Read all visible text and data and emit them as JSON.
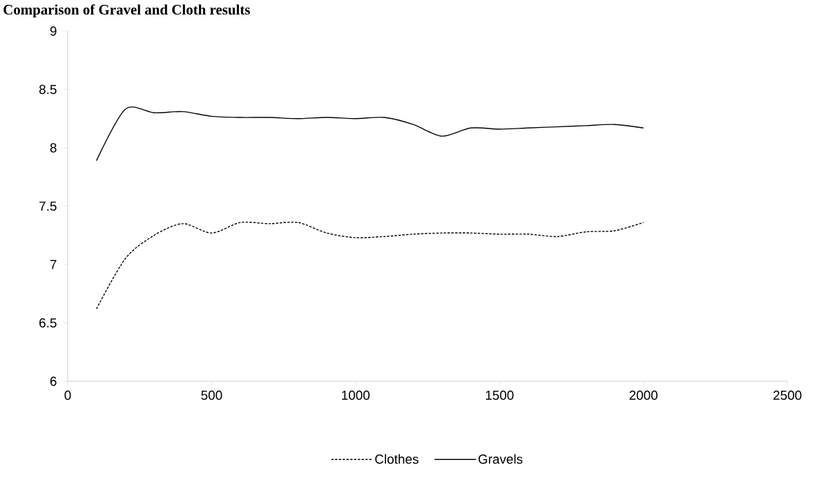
{
  "chart_data": {
    "type": "line",
    "title": "Comparison of Gravel and Cloth results",
    "x": [
      100,
      200,
      300,
      400,
      500,
      600,
      700,
      800,
      900,
      1000,
      1100,
      1200,
      1300,
      1400,
      1500,
      1600,
      1700,
      1800,
      1900,
      2000
    ],
    "series": [
      {
        "name": "Clothes",
        "color": "#000000",
        "line_style": "dashed",
        "values": [
          6.62,
          7.05,
          7.25,
          7.35,
          7.27,
          7.36,
          7.35,
          7.36,
          7.27,
          7.23,
          7.24,
          7.26,
          7.27,
          7.27,
          7.26,
          7.26,
          7.24,
          7.28,
          7.29,
          7.36
        ]
      },
      {
        "name": "Gravels",
        "color": "#000000",
        "line_style": "solid",
        "values": [
          7.89,
          8.33,
          8.3,
          8.31,
          8.27,
          8.26,
          8.26,
          8.25,
          8.26,
          8.25,
          8.26,
          8.2,
          8.1,
          8.17,
          8.16,
          8.17,
          8.18,
          8.19,
          8.2,
          8.17
        ]
      }
    ],
    "xlim": [
      0,
      2500
    ],
    "xticks": [
      0,
      500,
      1000,
      1500,
      2000,
      2500
    ],
    "ylim": [
      6,
      9
    ],
    "yticks": [
      6,
      6.5,
      7,
      7.5,
      8,
      8.5,
      9
    ],
    "grid": false,
    "legend": "bottom",
    "marker": "none"
  }
}
